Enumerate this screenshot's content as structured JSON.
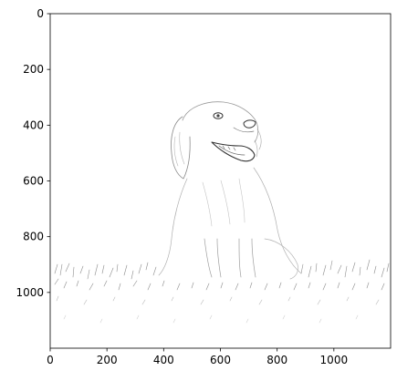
{
  "chart_data": {
    "type": "image",
    "xlim": [
      0,
      1200
    ],
    "ylim": [
      1200,
      0
    ],
    "x_ticks": [
      0,
      200,
      400,
      600,
      800,
      1000
    ],
    "y_ticks": [
      0,
      200,
      400,
      600,
      800,
      1000
    ],
    "x_tick_labels": [
      "0",
      "200",
      "400",
      "600",
      "800",
      "1000"
    ],
    "y_tick_labels": [
      "0",
      "200",
      "400",
      "600",
      "800",
      "1000"
    ],
    "grid": false,
    "y_inverted": true,
    "image_subject": "pencil-sketch-puppy-in-grass",
    "colors": {
      "axis": "#000000",
      "background": "#ffffff",
      "sketch": "#555555"
    }
  }
}
